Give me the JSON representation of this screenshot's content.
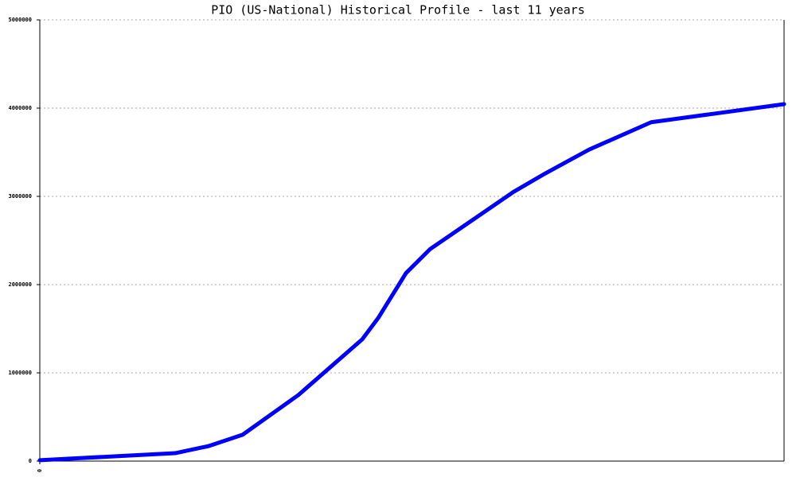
{
  "chart_data": {
    "type": "line",
    "title": "PIO (US-National) Historical Profile - last 11 years",
    "x": [
      0,
      170,
      212,
      255,
      325,
      405,
      425,
      460,
      490,
      595,
      635,
      690,
      768,
      935
    ],
    "values": [
      10000,
      90000,
      170000,
      300000,
      750000,
      1380000,
      1620000,
      2130000,
      2400000,
      3050000,
      3260000,
      3530000,
      3840000,
      4045000
    ],
    "color": "#0000ff",
    "xlim": [
      0,
      935
    ],
    "xticks": [
      0
    ],
    "ylim": [
      0,
      5000000
    ],
    "yticks": [
      0,
      1000000,
      2000000,
      3000000,
      4000000,
      5000000
    ],
    "grid": true
  }
}
